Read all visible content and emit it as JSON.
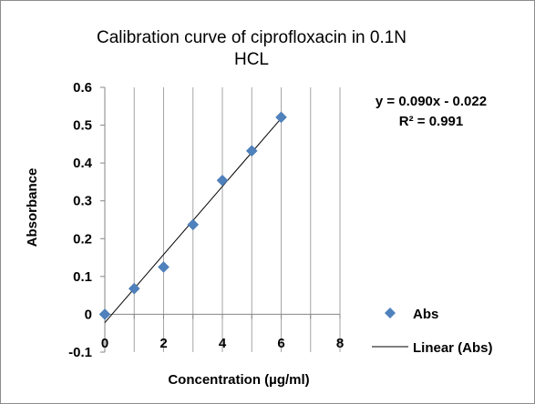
{
  "chart_data": {
    "type": "scatter",
    "title_line1": "Calibration curve of ciprofloxacin in 0.1N",
    "title_line2": "HCL",
    "xlabel": "Concentration (µg/ml)",
    "ylabel": "Absorbance",
    "xlim": [
      0,
      8
    ],
    "ylim": [
      -0.1,
      0.6
    ],
    "x_ticks": [
      0,
      2,
      4,
      6,
      8
    ],
    "y_ticks": [
      -0.1,
      0,
      0.1,
      0.2,
      0.3,
      0.4,
      0.5,
      0.6
    ],
    "x_tick_labels": [
      "0",
      "2",
      "4",
      "6",
      "8"
    ],
    "y_tick_labels": [
      "-0.1",
      "0",
      "0.1",
      "0.2",
      "0.3",
      "0.4",
      "0.5",
      "0.6"
    ],
    "grid": "vertical",
    "series": [
      {
        "name": "Abs",
        "marker": "diamond",
        "color": "#4f81bd",
        "x": [
          0,
          1,
          2,
          3,
          4,
          5,
          6
        ],
        "y": [
          0.0,
          0.068,
          0.125,
          0.237,
          0.354,
          0.432,
          0.521
        ]
      }
    ],
    "trendline": {
      "name": "Linear (Abs)",
      "type": "linear",
      "slope": 0.09,
      "intercept": -0.022,
      "x_range": [
        0,
        6
      ],
      "color": "#000000"
    },
    "equation": "y = 0.090x - 0.022",
    "r_squared": "R² = 0.991",
    "legend_position": "right"
  }
}
